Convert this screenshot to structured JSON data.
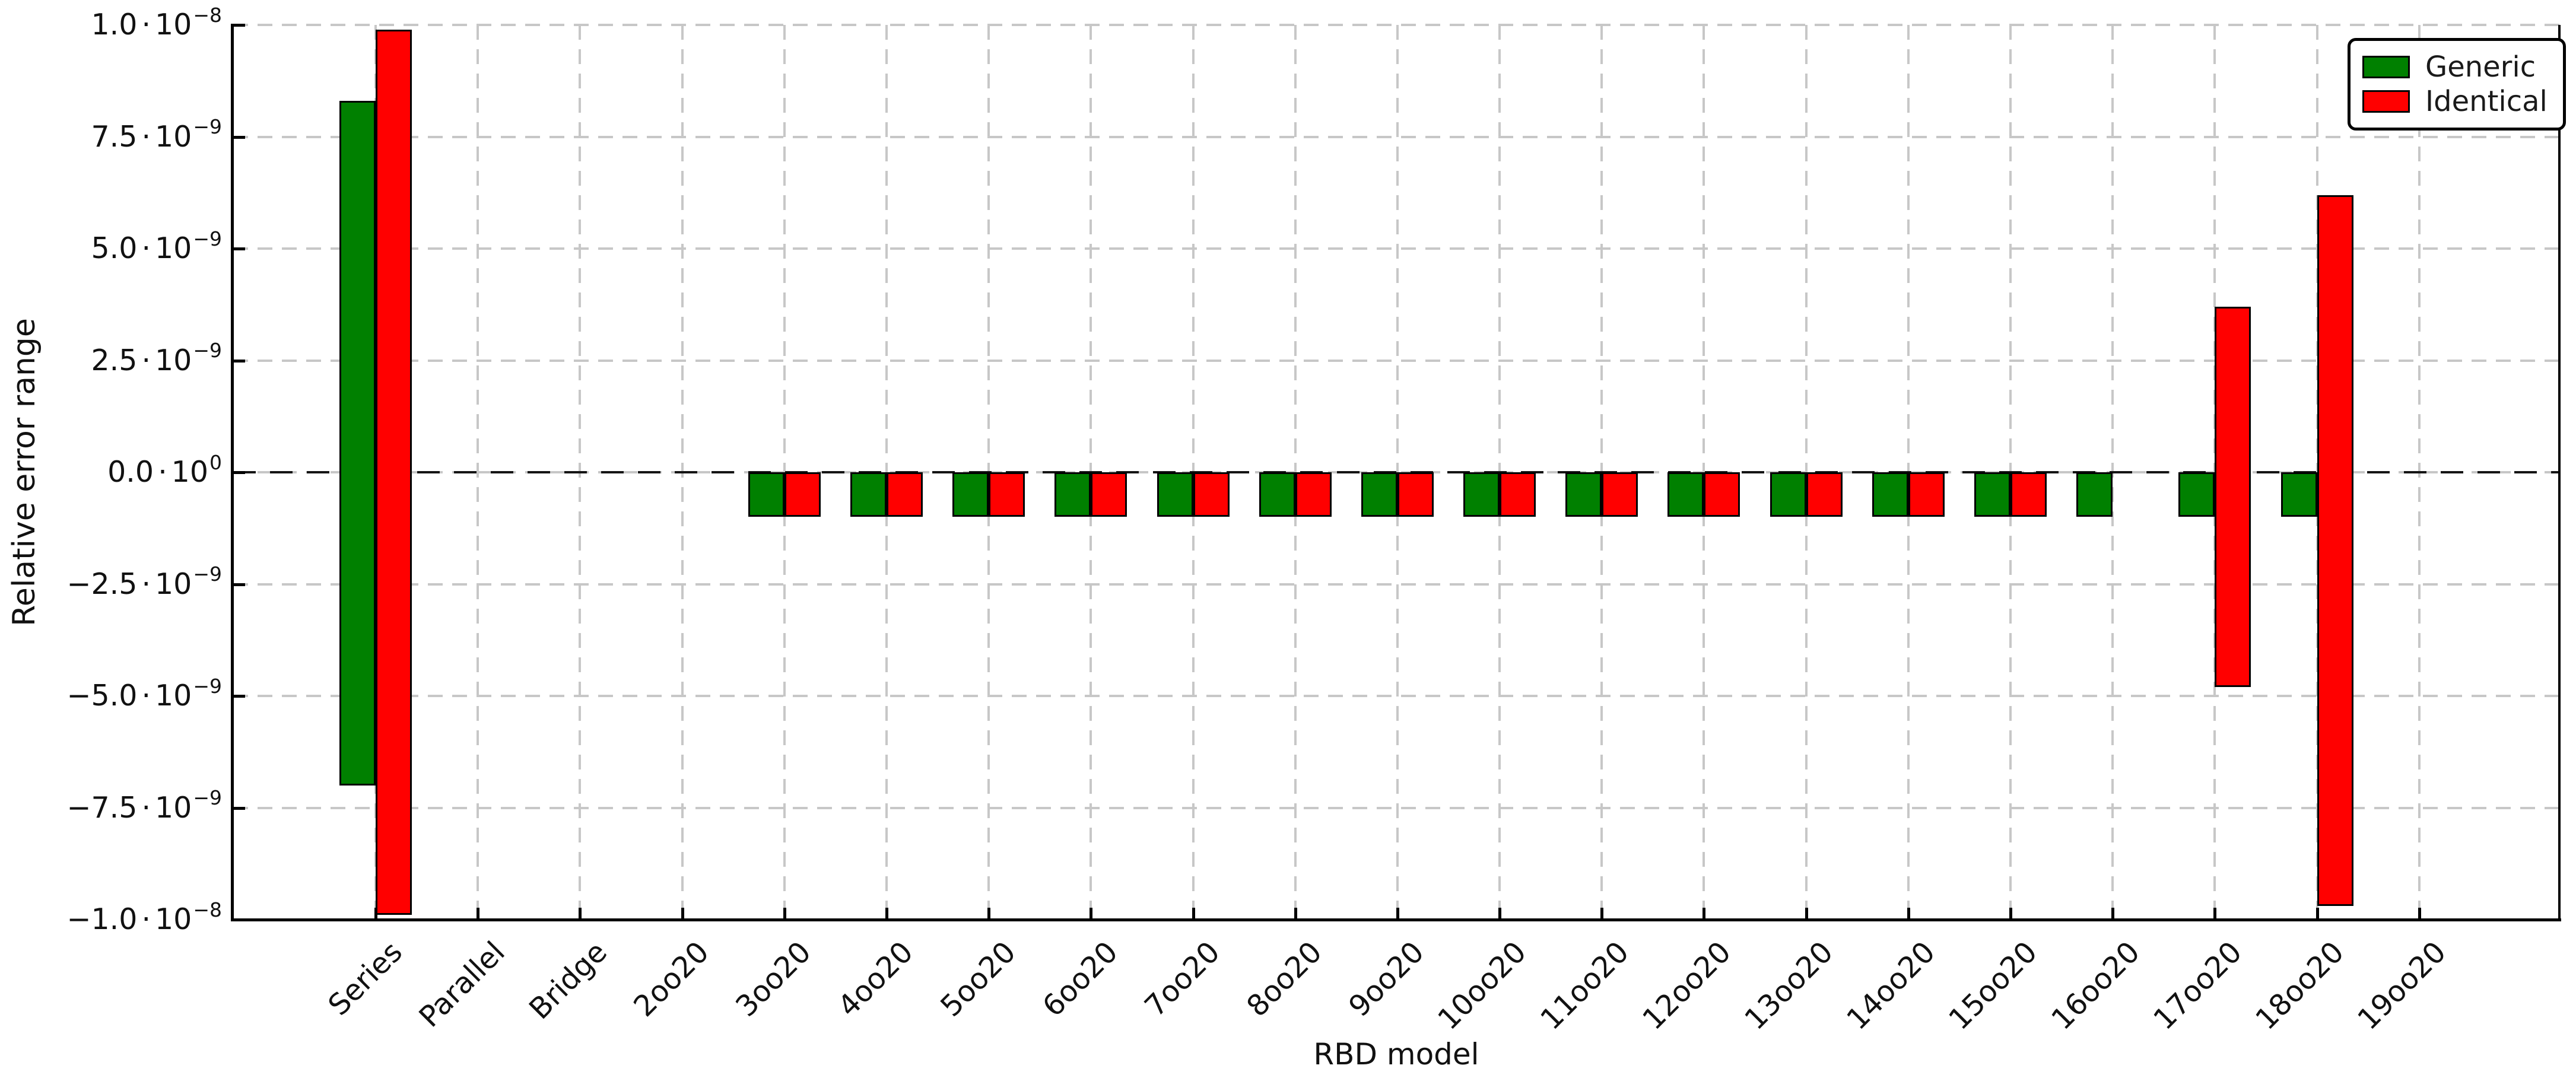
{
  "chart_data": {
    "type": "bar",
    "subtype": "floating_range_bars",
    "title": "",
    "xlabel": "RBD model",
    "ylabel": "Relative error range",
    "categories": [
      "Series",
      "Parallel",
      "Bridge",
      "2oo20",
      "3oo20",
      "4oo20",
      "5oo20",
      "6oo20",
      "7oo20",
      "8oo20",
      "9oo20",
      "10oo20",
      "11oo20",
      "12oo20",
      "13oo20",
      "14oo20",
      "15oo20",
      "16oo20",
      "17oo20",
      "18oo20",
      "19oo20"
    ],
    "series": [
      {
        "name": "Generic",
        "color": "#008000",
        "ranges": [
          [
            -7e-09,
            8.3e-09
          ],
          null,
          null,
          null,
          [
            -1e-09,
            0
          ],
          [
            -1e-09,
            0
          ],
          [
            -1e-09,
            0
          ],
          [
            -1e-09,
            0
          ],
          [
            -1e-09,
            0
          ],
          [
            -1e-09,
            0
          ],
          [
            -1e-09,
            0
          ],
          [
            -1e-09,
            0
          ],
          [
            -1e-09,
            0
          ],
          [
            -1e-09,
            0
          ],
          [
            -1e-09,
            0
          ],
          [
            -1e-09,
            0
          ],
          [
            -1e-09,
            0
          ],
          [
            -1e-09,
            0
          ],
          [
            -1e-09,
            0
          ],
          [
            -1e-09,
            0
          ],
          null
        ]
      },
      {
        "name": "Identical",
        "color": "#ff0000",
        "ranges": [
          [
            -9.9e-09,
            9.9e-09
          ],
          null,
          null,
          null,
          [
            -1e-09,
            0
          ],
          [
            -1e-09,
            0
          ],
          [
            -1e-09,
            0
          ],
          [
            -1e-09,
            0
          ],
          [
            -1e-09,
            0
          ],
          [
            -1e-09,
            0
          ],
          [
            -1e-09,
            0
          ],
          [
            -1e-09,
            0
          ],
          [
            -1e-09,
            0
          ],
          [
            -1e-09,
            0
          ],
          [
            -1e-09,
            0
          ],
          [
            -1e-09,
            0
          ],
          [
            -1e-09,
            0
          ],
          null,
          [
            -4.8e-09,
            3.7e-09
          ],
          [
            -9.7e-09,
            6.2e-09
          ]
        ]
      }
    ],
    "ylim": [
      -1e-08,
      1e-08
    ],
    "yticks": [
      {
        "value": 1e-08,
        "mantissa": "1.0",
        "dot": "⋅",
        "base": "10",
        "exp": "−8"
      },
      {
        "value": 7.5e-09,
        "mantissa": "7.5",
        "dot": "⋅",
        "base": "10",
        "exp": "−9"
      },
      {
        "value": 5e-09,
        "mantissa": "5.0",
        "dot": "⋅",
        "base": "10",
        "exp": "−9"
      },
      {
        "value": 2.5e-09,
        "mantissa": "2.5",
        "dot": "⋅",
        "base": "10",
        "exp": "−9"
      },
      {
        "value": 0,
        "mantissa": "0.0",
        "dot": "⋅",
        "base": "10",
        "exp": "0"
      },
      {
        "value": -2.5e-09,
        "mantissa": "−2.5",
        "dot": "⋅",
        "base": "10",
        "exp": "−9"
      },
      {
        "value": -5e-09,
        "mantissa": "−5.0",
        "dot": "⋅",
        "base": "10",
        "exp": "−9"
      },
      {
        "value": -7.5e-09,
        "mantissa": "−7.5",
        "dot": "⋅",
        "base": "10",
        "exp": "−9"
      },
      {
        "value": -1e-08,
        "mantissa": "−1.0",
        "dot": "⋅",
        "base": "10",
        "exp": "−8"
      }
    ],
    "grid": true,
    "zero_line": true,
    "legend_position": "upper right",
    "colors": {
      "grid": "#c7c7c7",
      "zero_line": "#151515",
      "bar_edge": "#000000",
      "generic": "#008000",
      "identical": "#ff0000"
    }
  }
}
